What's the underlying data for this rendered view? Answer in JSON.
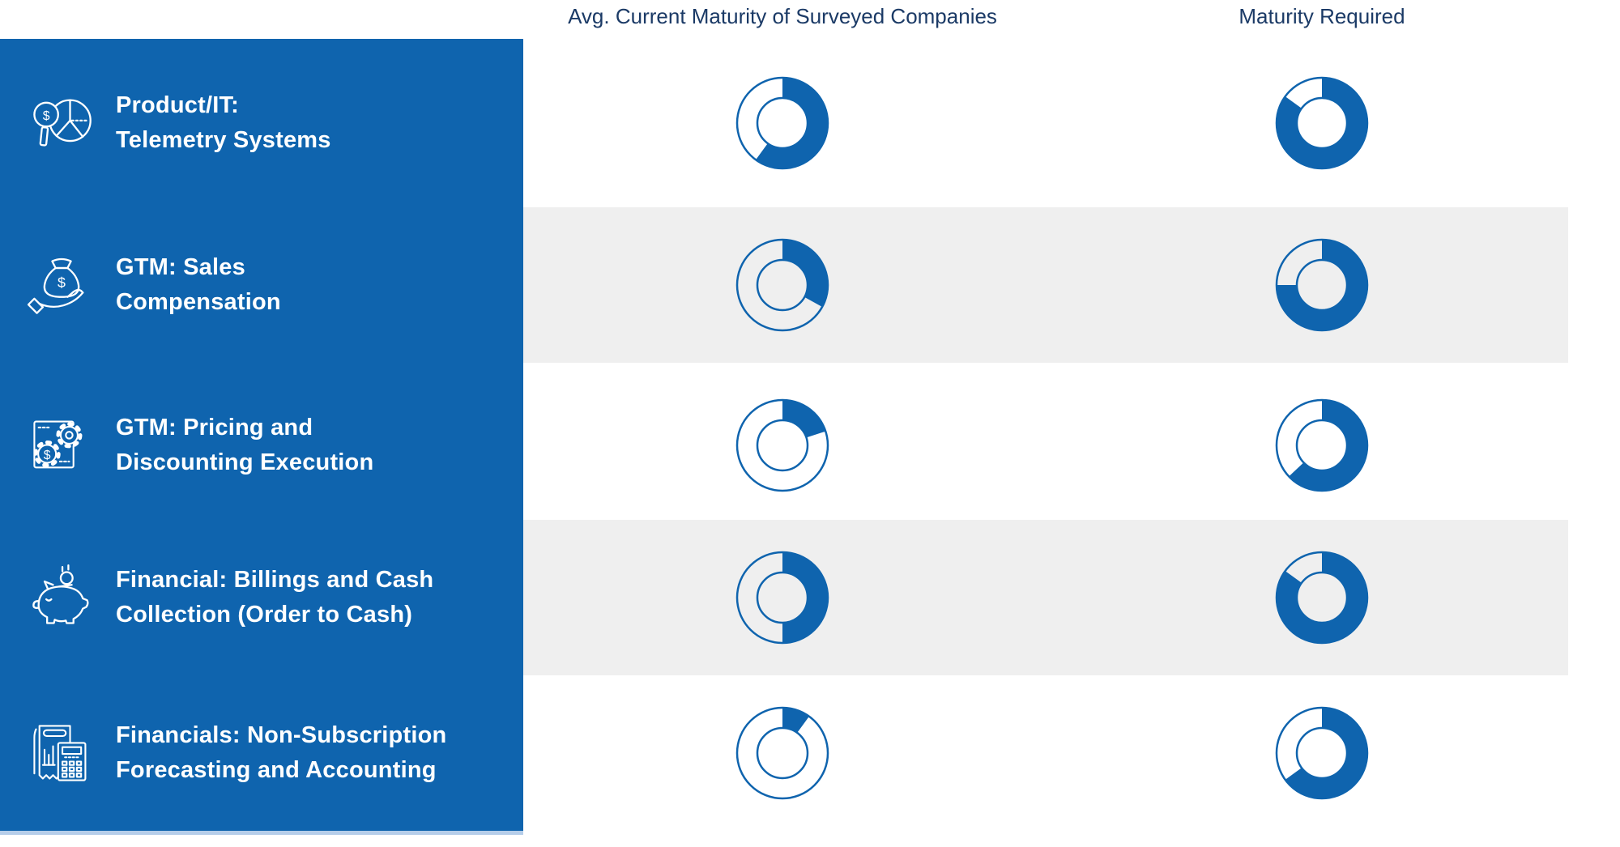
{
  "headers": {
    "col1": "Avg. Current Maturity of Surveyed Companies",
    "col2": "Maturity Required"
  },
  "sidebar": {
    "items": [
      {
        "icon": "magnifier-dollar-pie-icon",
        "line1": "Product/IT:",
        "line2": "Telemetry Systems"
      },
      {
        "icon": "hand-money-bag-icon",
        "line1": "GTM: Sales",
        "line2": "Compensation"
      },
      {
        "icon": "document-gears-dollar-icon",
        "line1": "GTM: Pricing and",
        "line2": "Discounting Execution"
      },
      {
        "icon": "piggy-bank-coin-icon",
        "line1": "Financial: Billings and Cash",
        "line2": "Collection (Order to Cash)"
      },
      {
        "icon": "receipt-calculator-icon",
        "line1": "Financials: Non-Subscription",
        "line2": "Forecasting and Accounting"
      }
    ]
  },
  "chart_data": {
    "type": "pie",
    "subtype": "donut-gauge-matrix",
    "categories": [
      "Product/IT: Telemetry Systems",
      "GTM: Sales Compensation",
      "GTM: Pricing and Discounting Execution",
      "Financial: Billings and Cash Collection (Order to Cash)",
      "Financials: Non-Subscription Forecasting and Accounting"
    ],
    "series": [
      {
        "name": "Avg. Current Maturity of Surveyed Companies",
        "values": [
          0.6,
          0.33,
          0.2,
          0.5,
          0.1
        ]
      },
      {
        "name": "Maturity Required",
        "values": [
          0.85,
          0.75,
          0.63,
          0.85,
          0.65
        ]
      }
    ],
    "value_scale": "fraction of donut ring filled, drawn clockwise starting at 12 o'clock",
    "layout": {
      "rows_with_gray_band": [
        2,
        4
      ],
      "grid": "5 rows x 2 donut columns"
    }
  },
  "colors": {
    "sidebar_blue": "#0f64ae",
    "donut_blue": "#0f64ae",
    "header_navy": "#1b3a66",
    "band_gray": "#efefef",
    "sidebar_footer_strip": "#b5cde9",
    "sidebar_text": "#ffffff"
  }
}
